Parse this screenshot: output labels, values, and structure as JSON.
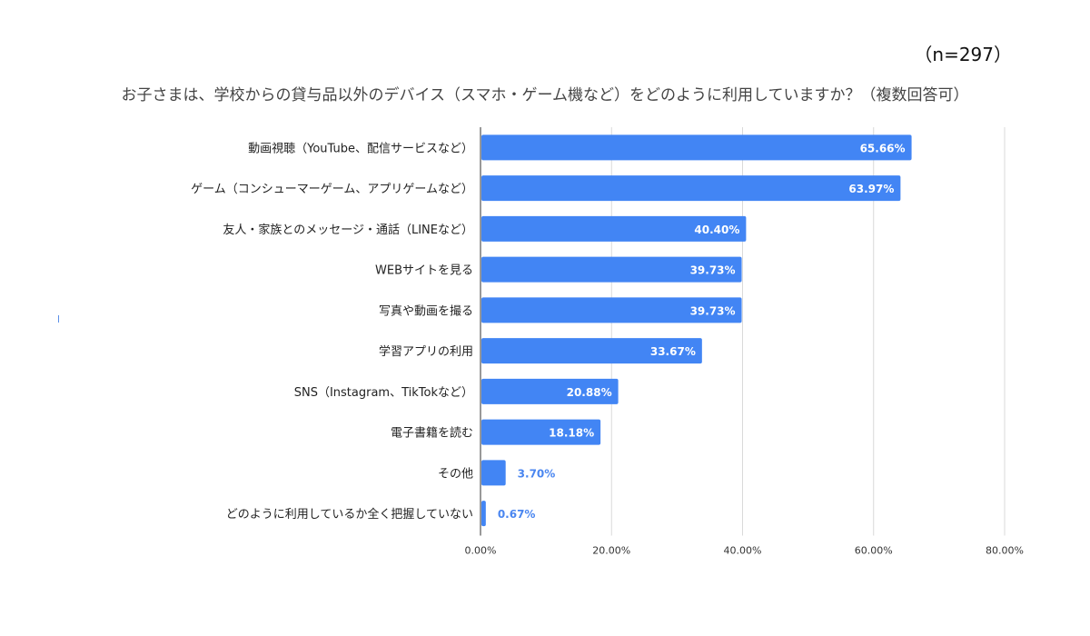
{
  "header": {
    "sample_size": "（n=297）",
    "title": "お子さまは、学校からの貸与品以外のデバイス（スマホ・ゲーム機など）をどのように利用していますか？（複数回答可）"
  },
  "chart_data": {
    "type": "bar",
    "orientation": "horizontal",
    "title": "お子さまは、学校からの貸与品以外のデバイス（スマホ・ゲーム機など）をどのように利用していますか？（複数回答可）",
    "categories": [
      "動画視聴（YouTube、配信サービスなど）",
      "ゲーム（コンシューマーゲーム、アプリゲームなど）",
      "友人・家族とのメッセージ・通話（LINEなど）",
      "WEBサイトを見る",
      "写真や動画を撮る",
      "学習アプリの利用",
      "SNS（Instagram、TikTokなど）",
      "電子書籍を読む",
      "その他",
      "どのように利用しているか全く把握していない"
    ],
    "values": [
      65.66,
      63.97,
      40.4,
      39.73,
      39.73,
      33.67,
      20.88,
      18.18,
      3.7,
      0.67
    ],
    "value_labels": [
      "65.66%",
      "63.97%",
      "40.40%",
      "39.73%",
      "39.73%",
      "33.67%",
      "20.88%",
      "18.18%",
      "3.70%",
      "0.67%"
    ],
    "xlim": [
      0,
      80
    ],
    "xticks": [
      0,
      20,
      40,
      60,
      80
    ],
    "xtick_labels": [
      "0.00%",
      "20.00%",
      "40.00%",
      "60.00%",
      "80.00%"
    ],
    "grid": true,
    "legend": "none",
    "colors": {
      "bar": "#4285f4",
      "label_inside": "#ffffff",
      "label_outside": "#4a86f0",
      "grid": "#d9d9d9",
      "axis": "#333333"
    }
  }
}
